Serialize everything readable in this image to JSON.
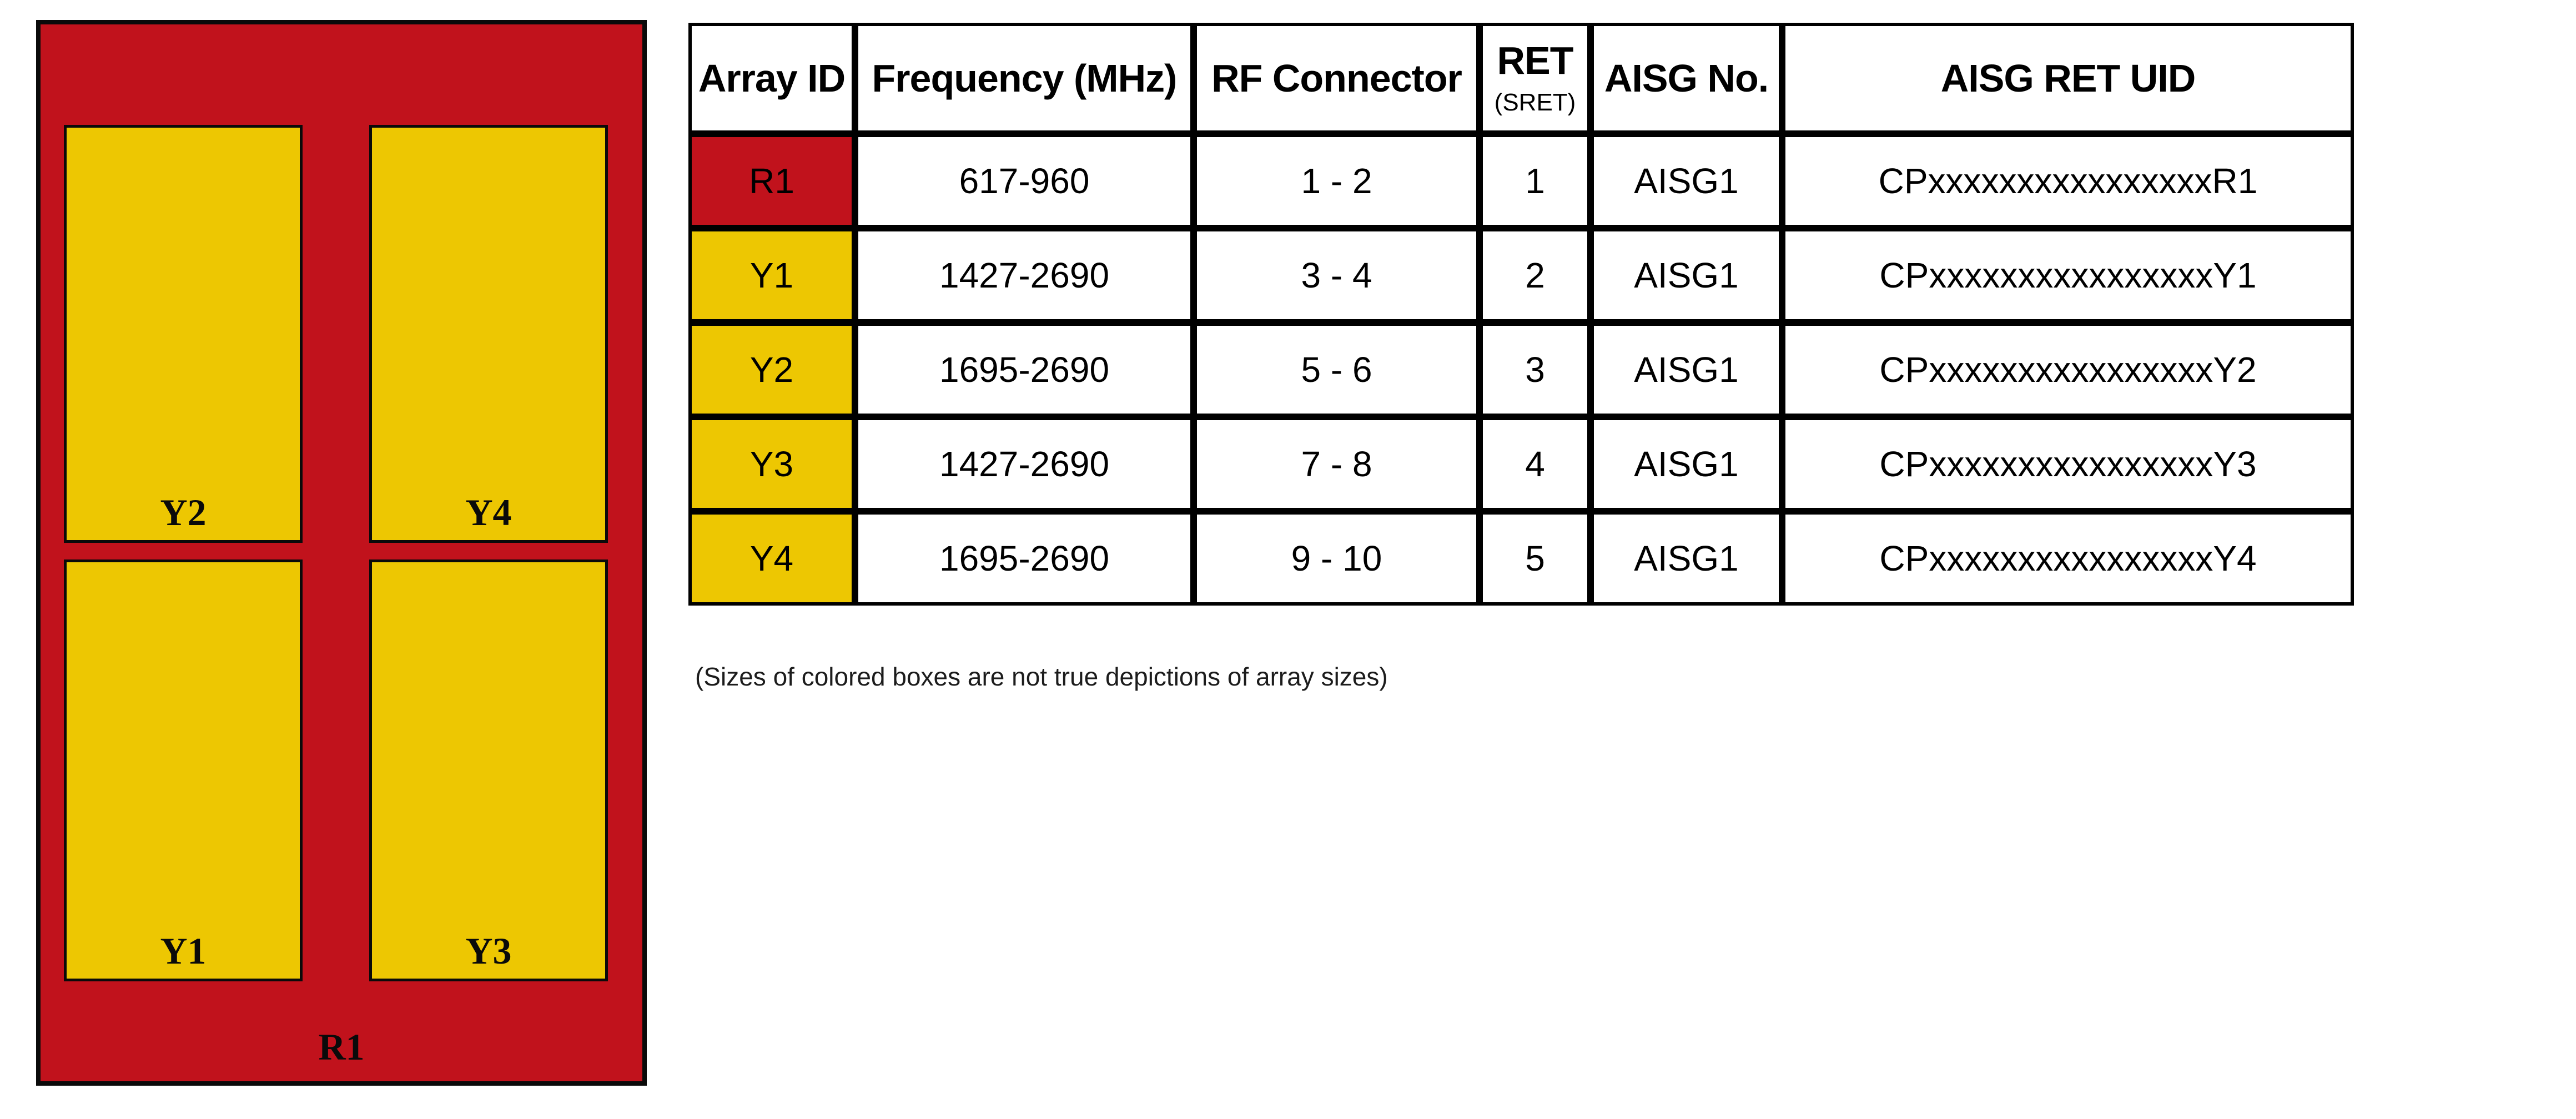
{
  "diagram": {
    "outer": {
      "label": "R1",
      "color": "#C1121C"
    },
    "box_color": "#EDC702",
    "border_color": "#0a0a0a",
    "boxes": {
      "y2": {
        "label": "Y2"
      },
      "y4": {
        "label": "Y4"
      },
      "y1": {
        "label": "Y1"
      },
      "y3": {
        "label": "Y3"
      }
    }
  },
  "table": {
    "headers": {
      "array_id": "Array ID",
      "frequency": "Frequency (MHz)",
      "rf_connector": "RF Connector",
      "ret": "RET",
      "ret_sub": "(SRET)",
      "aisg_no": "AISG No.",
      "aisg_ret_uid": "AISG RET UID"
    },
    "rows": [
      {
        "array_id": "R1",
        "id_color": "#C1121C",
        "frequency": "617-960",
        "rf_connector": "1 - 2",
        "ret": "1",
        "aisg_no": "AISG1",
        "aisg_ret_uid": "CPxxxxxxxxxxxxxxxxR1"
      },
      {
        "array_id": "Y1",
        "id_color": "#EDC702",
        "frequency": "1427-2690",
        "rf_connector": "3 - 4",
        "ret": "2",
        "aisg_no": "AISG1",
        "aisg_ret_uid": "CPxxxxxxxxxxxxxxxxY1"
      },
      {
        "array_id": "Y2",
        "id_color": "#EDC702",
        "frequency": "1695-2690",
        "rf_connector": "5 - 6",
        "ret": "3",
        "aisg_no": "AISG1",
        "aisg_ret_uid": "CPxxxxxxxxxxxxxxxxY2"
      },
      {
        "array_id": "Y3",
        "id_color": "#EDC702",
        "frequency": "1427-2690",
        "rf_connector": "7 - 8",
        "ret": "4",
        "aisg_no": "AISG1",
        "aisg_ret_uid": "CPxxxxxxxxxxxxxxxxY3"
      },
      {
        "array_id": "Y4",
        "id_color": "#EDC702",
        "frequency": "1695-2690",
        "rf_connector": "9 - 10",
        "ret": "5",
        "aisg_no": "AISG1",
        "aisg_ret_uid": "CPxxxxxxxxxxxxxxxxY4"
      }
    ]
  },
  "footnote": "(Sizes of colored boxes are not true depictions of array sizes)"
}
